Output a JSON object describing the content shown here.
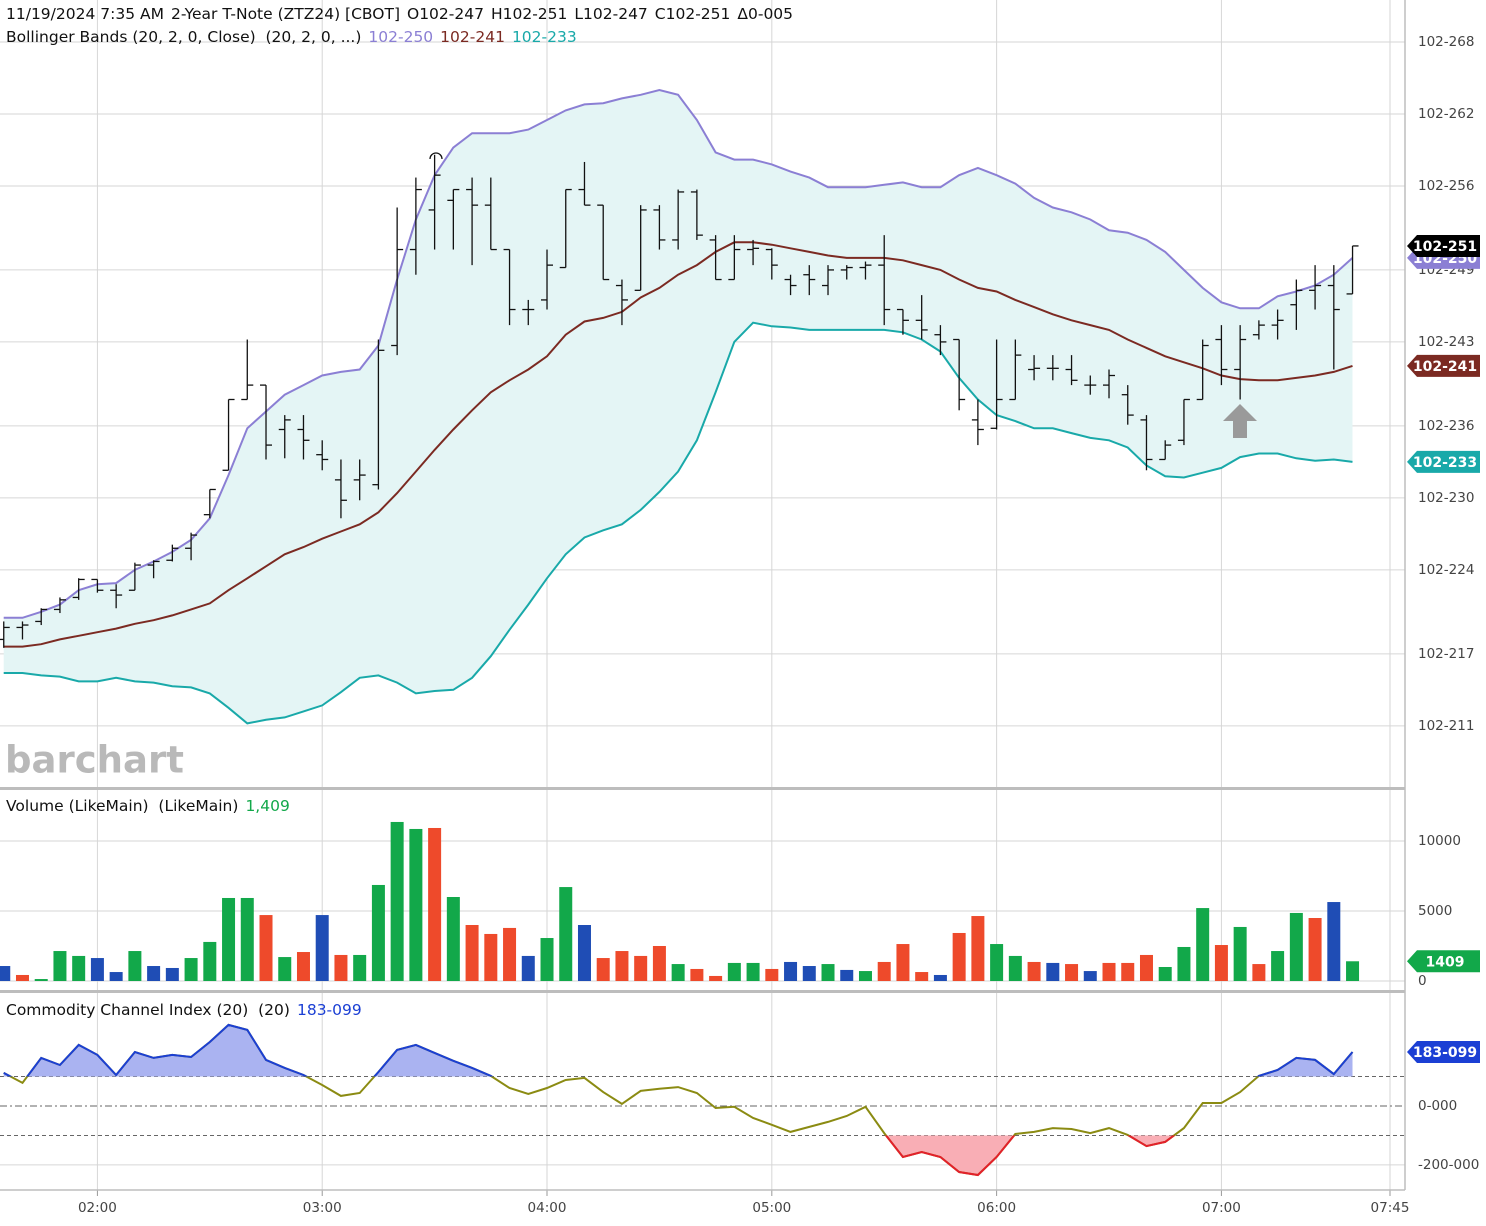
{
  "chart_data": [
    {
      "type": "ohlc",
      "header": [
        "11/19/2024 7:35 AM",
        "2-Year T-Note (ZTZ24) [CBOT]",
        "O102-247",
        "H102-251",
        "L102-247",
        "C102-251",
        "Δ0-005"
      ],
      "watermark": "barchart",
      "x": [
        "01:35",
        "01:40",
        "01:45",
        "01:50",
        "01:55",
        "02:00",
        "02:05",
        "02:10",
        "02:15",
        "02:20",
        "02:25",
        "02:30",
        "02:35",
        "02:40",
        "02:45",
        "02:50",
        "02:55",
        "03:00",
        "03:05",
        "03:10",
        "03:15",
        "03:20",
        "03:25",
        "03:30",
        "03:35",
        "03:40",
        "03:45",
        "03:50",
        "03:55",
        "04:00",
        "04:05",
        "04:10",
        "04:15",
        "04:20",
        "04:25",
        "04:30",
        "04:35",
        "04:40",
        "04:45",
        "04:50",
        "04:55",
        "05:00",
        "05:05",
        "05:10",
        "05:15",
        "05:20",
        "05:25",
        "05:30",
        "05:35",
        "05:40",
        "05:45",
        "05:50",
        "05:55",
        "06:00",
        "06:05",
        "06:10",
        "06:15",
        "06:20",
        "06:25",
        "06:30",
        "06:35",
        "06:40",
        "06:45",
        "06:50",
        "06:55",
        "07:00",
        "07:05",
        "07:10",
        "07:15",
        "07:20",
        "07:25",
        "07:30",
        "07:35"
      ],
      "open": [
        21.82,
        21.92,
        21.97,
        22.07,
        22.17,
        22.32,
        22.23,
        22.23,
        22.44,
        22.48,
        22.58,
        22.86,
        23.23,
        23.82,
        23.94,
        23.57,
        23.57,
        23.36,
        23.15,
        23.15,
        23.11,
        24.27,
        25.07,
        25.4,
        25.48,
        25.57,
        25.44,
        25.07,
        24.57,
        24.65,
        24.92,
        25.57,
        25.44,
        24.77,
        24.73,
        25.4,
        25.15,
        25.55,
        25.15,
        24.82,
        25.07,
        25.07,
        24.82,
        24.86,
        24.77,
        24.9,
        24.92,
        24.94,
        24.57,
        24.48,
        24.36,
        24.32,
        23.65,
        23.58,
        23.82,
        24.07,
        24.08,
        24.07,
        23.94,
        23.94,
        23.86,
        23.65,
        23.32,
        23.48,
        23.82,
        24.32,
        24.07,
        24.36,
        24.44,
        24.61,
        24.73,
        24.77,
        24.7
      ],
      "high": [
        21.97,
        21.97,
        22.08,
        22.17,
        22.33,
        22.32,
        22.28,
        22.46,
        22.48,
        22.61,
        22.71,
        23.07,
        23.82,
        24.32,
        23.94,
        23.69,
        23.69,
        23.48,
        23.32,
        23.32,
        24.32,
        25.42,
        25.67,
        25.86,
        25.57,
        25.67,
        25.67,
        25.07,
        24.65,
        25.07,
        25.57,
        25.8,
        25.44,
        24.82,
        25.44,
        25.44,
        25.57,
        25.57,
        25.19,
        25.19,
        25.15,
        25.08,
        24.86,
        24.94,
        24.94,
        24.94,
        24.97,
        25.19,
        24.57,
        24.69,
        24.44,
        24.32,
        23.82,
        24.32,
        24.32,
        24.19,
        24.19,
        24.19,
        24.02,
        24.07,
        23.94,
        23.69,
        23.48,
        23.82,
        24.32,
        24.44,
        24.44,
        24.48,
        24.57,
        24.82,
        24.94,
        24.94,
        25.1
      ],
      "low": [
        21.75,
        21.82,
        21.94,
        22.04,
        22.15,
        22.21,
        22.08,
        22.23,
        22.33,
        22.47,
        22.48,
        22.83,
        23.23,
        23.82,
        23.32,
        23.33,
        23.32,
        23.23,
        22.83,
        22.98,
        23.07,
        24.19,
        24.86,
        25.07,
        25.07,
        24.94,
        25.07,
        24.44,
        24.44,
        24.57,
        24.92,
        25.44,
        24.82,
        24.44,
        24.73,
        25.07,
        25.07,
        25.15,
        24.82,
        24.82,
        24.94,
        24.82,
        24.69,
        24.69,
        24.69,
        24.82,
        24.82,
        24.44,
        24.36,
        24.32,
        24.19,
        23.73,
        23.44,
        23.57,
        23.82,
        23.98,
        23.98,
        23.94,
        23.86,
        23.83,
        23.61,
        23.23,
        23.32,
        23.44,
        23.82,
        23.94,
        23.82,
        24.32,
        24.32,
        24.4,
        24.57,
        24.07,
        24.7
      ],
      "close": [
        21.92,
        21.94,
        22.07,
        22.15,
        22.32,
        22.23,
        22.19,
        22.44,
        22.47,
        22.58,
        22.69,
        23.07,
        23.82,
        23.94,
        23.44,
        23.65,
        23.48,
        23.32,
        22.98,
        23.19,
        24.23,
        25.07,
        25.57,
        25.69,
        25.57,
        25.44,
        25.07,
        24.57,
        24.57,
        24.94,
        25.57,
        25.44,
        24.82,
        24.65,
        25.4,
        25.15,
        25.55,
        25.19,
        24.82,
        25.07,
        25.08,
        24.94,
        24.77,
        24.82,
        24.9,
        24.92,
        24.94,
        24.57,
        24.48,
        24.4,
        24.3,
        23.82,
        23.57,
        23.82,
        24.19,
        24.08,
        24.08,
        23.98,
        23.94,
        24.02,
        23.69,
        23.32,
        23.44,
        23.82,
        24.27,
        24.07,
        24.32,
        24.44,
        24.48,
        24.73,
        24.77,
        24.57,
        25.1
      ],
      "color": "#111111",
      "last_label": "102-251",
      "last_label_color": "#000000",
      "bollinger": {
        "label": "Bollinger Bands (20, 2, 0, Close)  (20, 2, 0, ...)",
        "fill": "#e4f5f5",
        "bands": [
          {
            "color": "#8b7fd4",
            "last_label": "102-250",
            "values": [
              22.0,
              22.0,
              22.05,
              22.11,
              22.23,
              22.28,
              22.29,
              22.4,
              22.47,
              22.55,
              22.65,
              22.83,
              23.19,
              23.58,
              23.72,
              23.86,
              23.94,
              24.02,
              24.05,
              24.07,
              24.27,
              24.82,
              25.32,
              25.69,
              25.92,
              26.04,
              26.04,
              26.04,
              26.07,
              26.15,
              26.23,
              26.28,
              26.29,
              26.33,
              26.36,
              26.4,
              26.36,
              26.15,
              25.88,
              25.82,
              25.82,
              25.78,
              25.72,
              25.67,
              25.59,
              25.59,
              25.59,
              25.61,
              25.63,
              25.59,
              25.59,
              25.69,
              25.75,
              25.69,
              25.62,
              25.5,
              25.42,
              25.38,
              25.32,
              25.23,
              25.21,
              25.15,
              25.05,
              24.9,
              24.75,
              24.63,
              24.58,
              24.58,
              24.68,
              24.72,
              24.77,
              24.86,
              25.0
            ]
          },
          {
            "color": "#7b2a22",
            "last_label": "102-241",
            "values": [
              21.76,
              21.76,
              21.78,
              21.82,
              21.85,
              21.88,
              21.91,
              21.95,
              21.98,
              22.02,
              22.07,
              22.12,
              22.23,
              22.33,
              22.43,
              22.53,
              22.59,
              22.66,
              22.72,
              22.78,
              22.88,
              23.04,
              23.22,
              23.4,
              23.57,
              23.73,
              23.88,
              23.98,
              24.07,
              24.18,
              24.36,
              24.47,
              24.5,
              24.55,
              24.67,
              24.75,
              24.86,
              24.94,
              25.05,
              25.13,
              25.13,
              25.11,
              25.08,
              25.05,
              25.02,
              25.0,
              25.0,
              25.0,
              24.98,
              24.94,
              24.9,
              24.82,
              24.75,
              24.72,
              24.65,
              24.59,
              24.53,
              24.48,
              24.44,
              24.4,
              24.32,
              24.25,
              24.18,
              24.13,
              24.08,
              24.02,
              23.99,
              23.98,
              23.98,
              24.0,
              24.02,
              24.05,
              24.1
            ]
          },
          {
            "color": "#19a9a9",
            "last_label": "102-233",
            "values": [
              21.54,
              21.54,
              21.52,
              21.51,
              21.47,
              21.47,
              21.5,
              21.47,
              21.46,
              21.43,
              21.42,
              21.37,
              21.25,
              21.12,
              21.15,
              21.17,
              21.22,
              21.27,
              21.38,
              21.5,
              21.52,
              21.46,
              21.37,
              21.39,
              21.4,
              21.5,
              21.68,
              21.9,
              22.11,
              22.33,
              22.53,
              22.67,
              22.73,
              22.78,
              22.9,
              23.05,
              23.22,
              23.48,
              23.88,
              24.3,
              24.46,
              24.43,
              24.42,
              24.4,
              24.4,
              24.4,
              24.4,
              24.4,
              24.38,
              24.32,
              24.22,
              24.0,
              23.82,
              23.69,
              23.64,
              23.58,
              23.58,
              23.54,
              23.5,
              23.48,
              23.42,
              23.27,
              23.18,
              23.17,
              23.21,
              23.25,
              23.34,
              23.37,
              23.37,
              23.33,
              23.31,
              23.32,
              23.3
            ]
          }
        ]
      },
      "ylim": [
        20.59,
        27.15
      ],
      "yticks": [
        {
          "value": 21.1,
          "label": "102-211"
        },
        {
          "value": 21.7,
          "label": "102-217"
        },
        {
          "value": 22.4,
          "label": "102-224"
        },
        {
          "value": 23.0,
          "label": "102-230"
        },
        {
          "value": 23.6,
          "label": "102-236"
        },
        {
          "value": 24.3,
          "label": "102-243"
        },
        {
          "value": 24.9,
          "label": "102-249"
        },
        {
          "value": 25.6,
          "label": "102-256"
        },
        {
          "value": 26.2,
          "label": "102-262"
        },
        {
          "value": 26.8,
          "label": "102-268"
        }
      ]
    },
    {
      "type": "bar",
      "title": "Volume (LikeMain)  (LikeMain)",
      "x": [
        "01:35",
        "01:40",
        "01:45",
        "01:50",
        "01:55",
        "02:00",
        "02:05",
        "02:10",
        "02:15",
        "02:20",
        "02:25",
        "02:30",
        "02:35",
        "02:40",
        "02:45",
        "02:50",
        "02:55",
        "03:00",
        "03:05",
        "03:10",
        "03:15",
        "03:20",
        "03:25",
        "03:30",
        "03:35",
        "03:40",
        "03:45",
        "03:50",
        "03:55",
        "04:00",
        "04:05",
        "04:10",
        "04:15",
        "04:20",
        "04:25",
        "04:30",
        "04:35",
        "04:40",
        "04:45",
        "04:50",
        "04:55",
        "05:00",
        "05:05",
        "05:10",
        "05:15",
        "05:20",
        "05:25",
        "05:30",
        "05:35",
        "05:40",
        "05:45",
        "05:50",
        "05:55",
        "06:00",
        "06:05",
        "06:10",
        "06:15",
        "06:20",
        "06:25",
        "06:30",
        "06:35",
        "06:40",
        "06:45",
        "06:50",
        "06:55",
        "07:00",
        "07:05",
        "07:10",
        "07:15",
        "07:20",
        "07:25",
        "07:30",
        "07:35"
      ],
      "values": [
        1070,
        430,
        140,
        2140,
        1790,
        1640,
        640,
        2140,
        1070,
        930,
        1640,
        2790,
        5930,
        5930,
        4710,
        1710,
        2070,
        4710,
        1860,
        1860,
        6860,
        11360,
        10860,
        10930,
        6000,
        4000,
        3360,
        3790,
        1790,
        3070,
        6710,
        4000,
        1640,
        2140,
        1790,
        2500,
        1210,
        860,
        360,
        1290,
        1290,
        860,
        1360,
        1070,
        1210,
        790,
        710,
        1360,
        2640,
        640,
        430,
        3430,
        4640,
        2640,
        1790,
        1360,
        1290,
        1210,
        710,
        1290,
        1290,
        1860,
        1000,
        2430,
        5210,
        2570,
        3860,
        1210,
        2140,
        4860,
        4500,
        5640,
        1409
      ],
      "colors": [
        "#1f4db5",
        "#ee4a2b",
        "#12a84a",
        "#12a84a",
        "#12a84a",
        "#1f4db5",
        "#1f4db5",
        "#12a84a",
        "#1f4db5",
        "#1f4db5",
        "#12a84a",
        "#12a84a",
        "#12a84a",
        "#12a84a",
        "#ee4a2b",
        "#12a84a",
        "#ee4a2b",
        "#1f4db5",
        "#ee4a2b",
        "#12a84a",
        "#12a84a",
        "#12a84a",
        "#12a84a",
        "#ee4a2b",
        "#12a84a",
        "#ee4a2b",
        "#ee4a2b",
        "#ee4a2b",
        "#1f4db5",
        "#12a84a",
        "#12a84a",
        "#1f4db5",
        "#ee4a2b",
        "#ee4a2b",
        "#ee4a2b",
        "#ee4a2b",
        "#12a84a",
        "#ee4a2b",
        "#ee4a2b",
        "#12a84a",
        "#12a84a",
        "#ee4a2b",
        "#1f4db5",
        "#1f4db5",
        "#12a84a",
        "#1f4db5",
        "#12a84a",
        "#ee4a2b",
        "#ee4a2b",
        "#ee4a2b",
        "#1f4db5",
        "#ee4a2b",
        "#ee4a2b",
        "#12a84a",
        "#12a84a",
        "#ee4a2b",
        "#1f4db5",
        "#ee4a2b",
        "#1f4db5",
        "#ee4a2b",
        "#ee4a2b",
        "#ee4a2b",
        "#12a84a",
        "#12a84a",
        "#12a84a",
        "#ee4a2b",
        "#12a84a",
        "#ee4a2b",
        "#12a84a",
        "#12a84a",
        "#ee4a2b",
        "#1f4db5",
        "#12a84a"
      ],
      "last_label": "1,409",
      "label_color": "#12a84a",
      "ylim": [
        -643,
        13643
      ],
      "yticks": [
        0,
        5000,
        10000
      ]
    },
    {
      "type": "line",
      "title": "Commodity Channel Index (20)  (20)",
      "x": [
        "01:35",
        "01:40",
        "01:45",
        "01:50",
        "01:55",
        "02:00",
        "02:05",
        "02:10",
        "02:15",
        "02:20",
        "02:25",
        "02:30",
        "02:35",
        "02:40",
        "02:45",
        "02:50",
        "02:55",
        "03:00",
        "03:05",
        "03:10",
        "03:15",
        "03:20",
        "03:25",
        "03:30",
        "03:35",
        "03:40",
        "03:45",
        "03:50",
        "03:55",
        "04:00",
        "04:05",
        "04:10",
        "04:15",
        "04:20",
        "04:25",
        "04:30",
        "04:35",
        "04:40",
        "04:45",
        "04:50",
        "04:55",
        "05:00",
        "05:05",
        "05:10",
        "05:15",
        "05:20",
        "05:25",
        "05:30",
        "05:35",
        "05:40",
        "05:45",
        "05:50",
        "05:55",
        "06:00",
        "06:05",
        "06:10",
        "06:15",
        "06:20",
        "06:25",
        "06:30",
        "06:35",
        "06:40",
        "06:45",
        "06:50",
        "06:55",
        "07:00",
        "07:05",
        "07:10",
        "07:15",
        "07:20",
        "07:25",
        "07:30",
        "07:35"
      ],
      "values": [
        112,
        78,
        163,
        139,
        207,
        173,
        105,
        183,
        163,
        173,
        166,
        217,
        275,
        258,
        156,
        129,
        105,
        71,
        34,
        44,
        115,
        190,
        207,
        180,
        153,
        129,
        102,
        61,
        41,
        61,
        88,
        95,
        47,
        7,
        51,
        58,
        64,
        44,
        -7,
        -3,
        -41,
        -64,
        -88,
        -71,
        -54,
        -34,
        -3,
        -92,
        -173,
        -156,
        -173,
        -224,
        -234,
        -173,
        -95,
        -88,
        -75,
        -78,
        -92,
        -75,
        -98,
        -136,
        -122,
        -75,
        10,
        10,
        47,
        102,
        122,
        163,
        156,
        108,
        183.099
      ],
      "last_label": "183-099",
      "color": "#8b8b12",
      "color_high": "#1b3fd4",
      "color_low": "#e3202b",
      "fill_high": "#aab3f1",
      "fill_low": "#f9aeb5",
      "levels": [
        100,
        -100
      ],
      "ylim": [
        -285,
        383
      ],
      "yticks": [
        {
          "value": 0,
          "label": "0-000"
        },
        {
          "value": -200,
          "label": "-200-000"
        }
      ],
      "xlim": [
        "01:34",
        "07:49"
      ],
      "xticks": [
        "02:00",
        "03:00",
        "04:00",
        "05:00",
        "06:00",
        "07:00",
        "07:45"
      ]
    }
  ]
}
